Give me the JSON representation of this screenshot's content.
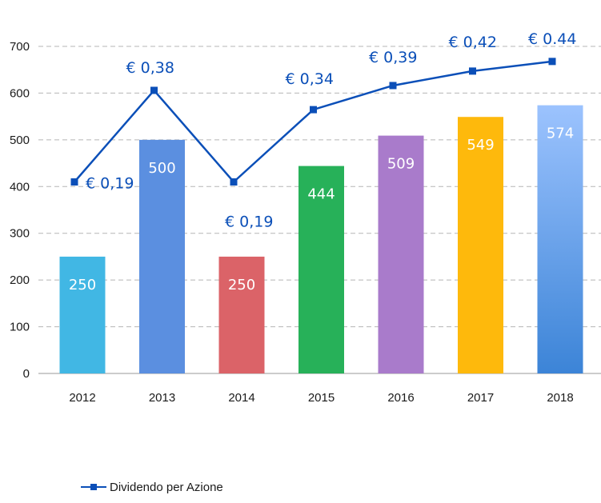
{
  "chart_data": {
    "type": "bar",
    "categories": [
      "2012",
      "2013",
      "2014",
      "2015",
      "2016",
      "2017",
      "2018"
    ],
    "values": [
      250,
      500,
      250,
      444,
      509,
      549,
      574
    ],
    "bar_labels": [
      "250",
      "500",
      "250",
      "444",
      "509",
      "549",
      "574"
    ],
    "bar_colors": [
      "#41b7e4",
      "#5b8fe0",
      "#db6368",
      "#27b159",
      "#a97bcb",
      "#feb90c",
      "#9cc3fe"
    ],
    "ylim": [
      0,
      700
    ],
    "y_ticks": [
      "0",
      "100",
      "200",
      "300",
      "400",
      "500",
      "600",
      "700"
    ],
    "grid": true,
    "line_series": {
      "name": "Dividendo per Azione",
      "color": "#0b4fb8",
      "values": [
        0.19,
        0.38,
        0.19,
        0.34,
        0.39,
        0.42,
        0.44
      ],
      "labels": [
        "€ 0,19",
        "€ 0,38",
        "€ 0,19",
        "€ 0,34",
        "€ 0,39",
        "€ 0,42",
        "€ 0.44"
      ]
    },
    "legend_position": "bottom-left"
  }
}
